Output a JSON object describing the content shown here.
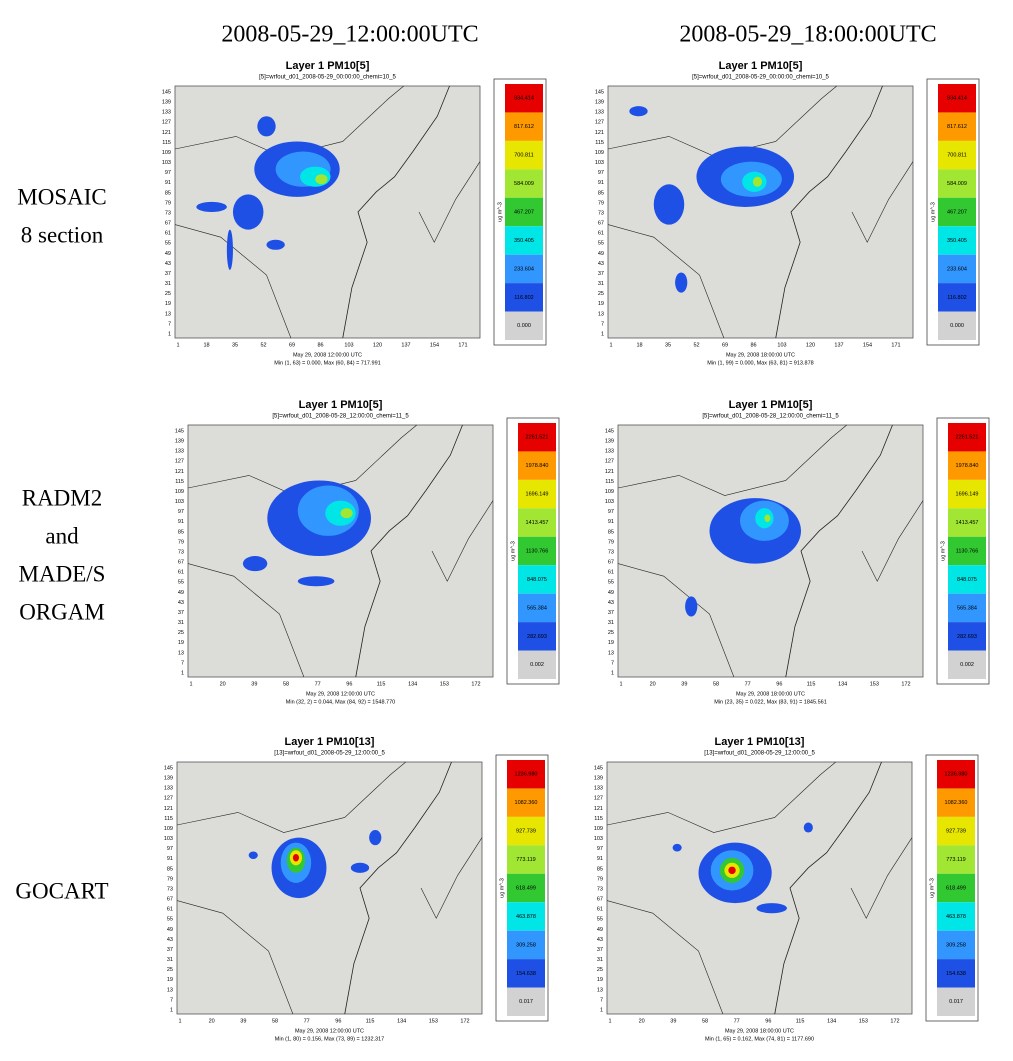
{
  "columns": [
    "2008-05-29_12:00:00UTC",
    "2008-05-29_18:00:00UTC"
  ],
  "yticks": [
    "1",
    "7",
    "13",
    "19",
    "25",
    "31",
    "37",
    "43",
    "49",
    "55",
    "61",
    "67",
    "73",
    "79",
    "85",
    "91",
    "97",
    "103",
    "109",
    "115",
    "121",
    "127",
    "133",
    "139",
    "145"
  ],
  "colorbar_colors": [
    "#e60000",
    "#ff9900",
    "#e6e600",
    "#a0e632",
    "#32c832",
    "#00e6e6",
    "#3296ff",
    "#1e50e6",
    "#d2d2d2"
  ],
  "unit": "ug m^-3",
  "rows": [
    {
      "label": [
        "MOSAIC",
        "8 section"
      ],
      "colorbar": [
        "934.414",
        "817.612",
        "700.811",
        "584.009",
        "467.207",
        "350.405",
        "233.604",
        "116.802",
        "0.000"
      ],
      "xticks": [
        "1",
        "18",
        "35",
        "52",
        "69",
        "86",
        "103",
        "120",
        "137",
        "154",
        "171"
      ],
      "panels": [
        {
          "title": "Layer 1 PM10[5]",
          "subtitle": "[5]=wrfout_d01_2008-05-29_00:00:00_chemi=10_5",
          "date": "May 29, 2008 12:00:00 UTC",
          "minmax": "Min (1, 63) = 0.000, Max (60, 84) = 717.991"
        },
        {
          "title": "Layer 1 PM10[5]",
          "subtitle": "[5]=wrfout_d01_2008-05-29_00:00:00_chemi=10_5",
          "date": "May 29, 2008 18:00:00 UTC",
          "minmax": "Min (1, 99) = 0.000, Max (63, 81) = 913.878"
        }
      ]
    },
    {
      "label": [
        "RADM2",
        "and",
        "MADE/S",
        "ORGAM"
      ],
      "colorbar": [
        "2261.521",
        "1978.840",
        "1696.149",
        "1413.457",
        "1130.766",
        "848.075",
        "565.384",
        "282.693",
        "0.002"
      ],
      "xticks": [
        "1",
        "20",
        "39",
        "58",
        "77",
        "96",
        "115",
        "134",
        "153",
        "172"
      ],
      "panels": [
        {
          "title": "Layer 1 PM10[5]",
          "subtitle": "[5]=wrfout_d01_2008-05-28_12:00:00_chemi=11_5",
          "date": "May 29, 2008 12:00:00 UTC",
          "minmax": "Min (32, 2) = 0.044, Max (84, 92) = 1548.770"
        },
        {
          "title": "Layer 1 PM10[5]",
          "subtitle": "[5]=wrfout_d01_2008-05-28_12:00:00_chemi=11_5",
          "date": "May 29, 2008 18:00:00 UTC",
          "minmax": "Min (23, 35) = 0.022, Max (83, 91) = 1845.561"
        }
      ]
    },
    {
      "label": [
        "GOCART"
      ],
      "colorbar": [
        "1236.980",
        "1082.360",
        "927.739",
        "773.119",
        "618.499",
        "463.878",
        "309.258",
        "154.638",
        "0.017"
      ],
      "xticks": [
        "1",
        "20",
        "39",
        "58",
        "77",
        "96",
        "115",
        "134",
        "153",
        "172"
      ],
      "panels": [
        {
          "title": "Layer 1 PM10[13]",
          "subtitle": "[13]=wrfout_d01_2008-05-29_12:00:00_5",
          "date": "May 29, 2008 12:00:00 UTC",
          "minmax": "Min (1, 80) = 0.156, Max (73, 89) = 1232.317"
        },
        {
          "title": "Layer 1 PM10[13]",
          "subtitle": "[13]=wrfout_d01_2008-05-29_12:00:00_5",
          "date": "May 29, 2008 18:00:00 UTC",
          "minmax": "Min (1, 65) = 0.162, Max (74, 81) = 1177.690"
        }
      ]
    }
  ]
}
